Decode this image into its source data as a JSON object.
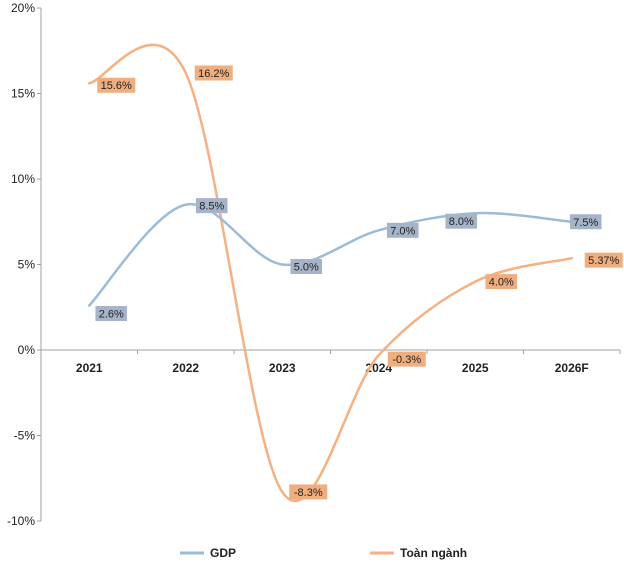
{
  "chart_data": {
    "type": "line",
    "categories": [
      "2021",
      "2022",
      "2023",
      "2024",
      "2025",
      "2026F"
    ],
    "ylim": [
      -10,
      20
    ],
    "yticks": [
      -10,
      -5,
      0,
      5,
      10,
      15,
      20
    ],
    "ytick_labels": [
      "-10%",
      "-5%",
      "0%",
      "5%",
      "10%",
      "15%",
      "20%"
    ],
    "grid": false,
    "legend_position": "bottom",
    "series": [
      {
        "name": "GDP",
        "values": [
          2.6,
          8.5,
          5.0,
          7.0,
          8.0,
          7.5
        ],
        "labels": [
          "2.6%",
          "8.5%",
          "5.0%",
          "7.0%",
          "8.0%",
          "7.5%"
        ],
        "color": "#9bbbd9",
        "label_bg": "#a6b4c9"
      },
      {
        "name": "Toàn ngành",
        "values": [
          15.6,
          16.2,
          -8.3,
          -0.3,
          4.0,
          5.37
        ],
        "labels": [
          "15.6%",
          "16.2%",
          "-8.3%",
          "-0.3%",
          "4.0%",
          "5.37%"
        ],
        "color": "#f4b183",
        "label_bg": "#f0ad7e"
      }
    ]
  }
}
